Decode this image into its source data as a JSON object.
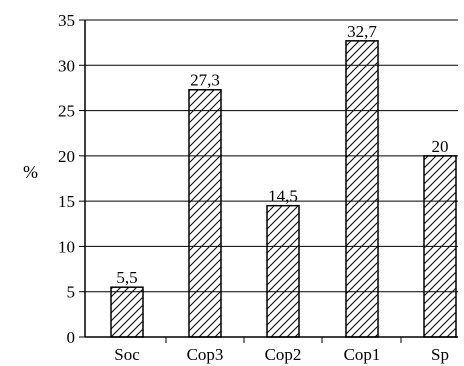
{
  "chart_data": {
    "type": "bar",
    "categories": [
      "Soc",
      "Cop3",
      "Cop2",
      "Cop1",
      "Sp"
    ],
    "values": [
      5.5,
      27.3,
      14.5,
      32.7,
      20
    ],
    "data_labels": [
      "5,5",
      "27,3",
      "14,5",
      "32,7",
      "20"
    ],
    "title": "",
    "xlabel": "",
    "ylabel": "%",
    "ylim": [
      0,
      35
    ],
    "yticks": [
      "0",
      "5",
      "10",
      "15",
      "20",
      "25",
      "30",
      "35"
    ],
    "grid": "horizontal",
    "bar_fill": "diagonal-hatch",
    "colors": {
      "bar_edge": "#000000",
      "hatch": "#000000",
      "background": "#ffffff"
    }
  }
}
